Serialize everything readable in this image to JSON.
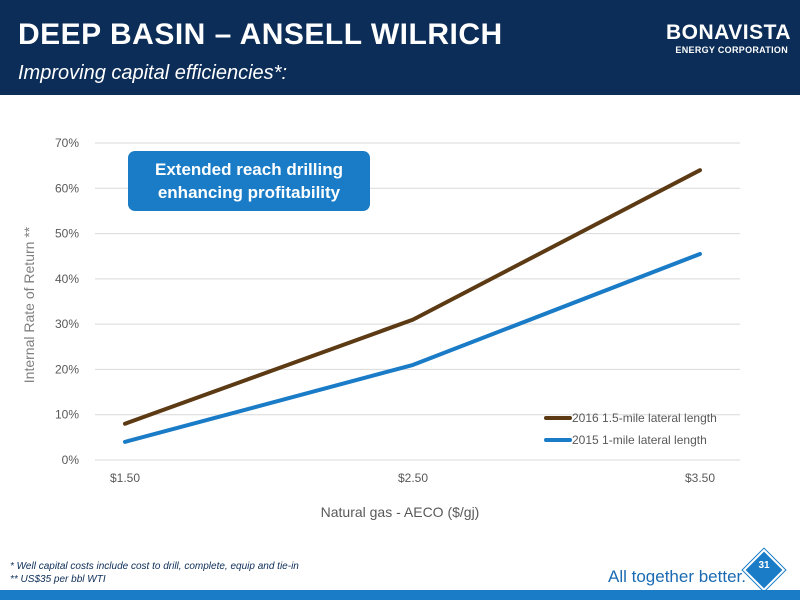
{
  "slide": {
    "title": "DEEP BASIN – ANSELL WILRICH",
    "subtitle": "Improving capital efficiencies*:",
    "logo_name": "BONAVISTA",
    "logo_sub": "ENERGY CORPORATION",
    "callout_line1": "Extended reach drilling",
    "callout_line2": "enhancing profitability",
    "footnote1": "* Well capital costs include cost to drill, complete, equip and tie-in",
    "footnote2": "** US$35 per bbl WTI",
    "tagline": "All together better.",
    "tagline_mark": "®",
    "page_number": "31"
  },
  "colors": {
    "header": "#0c2d57",
    "accent": "#1a7cc7",
    "series_2016": "#5c3a14",
    "series_2015": "#1a7cc7"
  },
  "chart_data": {
    "type": "line",
    "xlabel": "Natural gas - AECO ($/gj)",
    "ylabel": "Internal Rate of Return **",
    "categories": [
      "$1.50",
      "$2.50",
      "$3.50"
    ],
    "y_ticks": [
      "0%",
      "10%",
      "20%",
      "30%",
      "40%",
      "50%",
      "60%",
      "70%"
    ],
    "ylim": [
      0,
      70
    ],
    "grid": true,
    "legend_position": "bottom-right",
    "series": [
      {
        "name": "2016 1.5-mile lateral length",
        "values": [
          8,
          31,
          64
        ]
      },
      {
        "name": "2015 1-mile lateral length",
        "values": [
          4,
          21,
          45.5
        ]
      }
    ]
  }
}
